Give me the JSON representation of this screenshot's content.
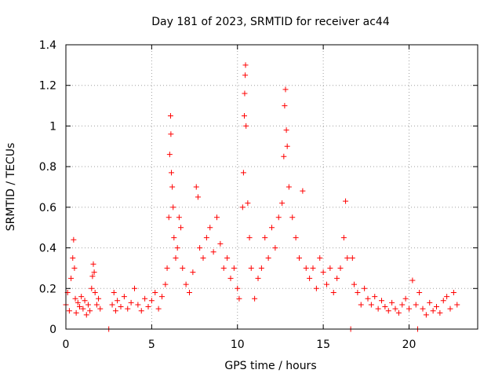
{
  "chart_data": {
    "type": "scatter",
    "title": "Day 181 of 2023, SRMTID for receiver ac44",
    "xlabel": "GPS time / hours",
    "ylabel": "SRMTID / TECUs",
    "xlim": [
      0,
      24
    ],
    "ylim": [
      0,
      1.4
    ],
    "xticks": [
      "0",
      "5",
      "10",
      "15",
      "20"
    ],
    "yticks": [
      "0",
      "0.2",
      "0.4",
      "0.6",
      "0.8",
      "1",
      "1.2",
      "1.4"
    ],
    "grid": true,
    "marker": "+",
    "color": "#ff0000",
    "series": [
      {
        "name": "SRMTID",
        "points": [
          [
            0.0,
            0.12
          ],
          [
            0.1,
            0.18
          ],
          [
            0.2,
            0.09
          ],
          [
            0.3,
            0.25
          ],
          [
            0.4,
            0.35
          ],
          [
            0.45,
            0.44
          ],
          [
            0.5,
            0.3
          ],
          [
            0.55,
            0.15
          ],
          [
            0.6,
            0.08
          ],
          [
            0.7,
            0.13
          ],
          [
            0.8,
            0.11
          ],
          [
            0.9,
            0.16
          ],
          [
            1.0,
            0.1
          ],
          [
            1.1,
            0.14
          ],
          [
            1.2,
            0.07
          ],
          [
            1.3,
            0.12
          ],
          [
            1.4,
            0.09
          ],
          [
            1.5,
            0.2
          ],
          [
            1.55,
            0.26
          ],
          [
            1.6,
            0.32
          ],
          [
            1.65,
            0.28
          ],
          [
            1.7,
            0.18
          ],
          [
            1.8,
            0.12
          ],
          [
            1.9,
            0.15
          ],
          [
            2.0,
            0.1
          ],
          [
            2.5,
            0.0
          ],
          [
            2.7,
            0.12
          ],
          [
            2.8,
            0.18
          ],
          [
            2.9,
            0.09
          ],
          [
            3.0,
            0.14
          ],
          [
            3.2,
            0.11
          ],
          [
            3.4,
            0.16
          ],
          [
            3.6,
            0.1
          ],
          [
            3.8,
            0.13
          ],
          [
            4.0,
            0.2
          ],
          [
            4.2,
            0.12
          ],
          [
            4.4,
            0.09
          ],
          [
            4.6,
            0.15
          ],
          [
            4.8,
            0.11
          ],
          [
            5.0,
            0.14
          ],
          [
            5.2,
            0.18
          ],
          [
            5.4,
            0.1
          ],
          [
            5.6,
            0.16
          ],
          [
            5.8,
            0.22
          ],
          [
            5.9,
            0.3
          ],
          [
            6.0,
            0.55
          ],
          [
            6.05,
            0.86
          ],
          [
            6.1,
            1.05
          ],
          [
            6.12,
            0.96
          ],
          [
            6.15,
            0.77
          ],
          [
            6.2,
            0.7
          ],
          [
            6.25,
            0.6
          ],
          [
            6.3,
            0.45
          ],
          [
            6.4,
            0.35
          ],
          [
            6.5,
            0.4
          ],
          [
            6.6,
            0.55
          ],
          [
            6.7,
            0.5
          ],
          [
            6.8,
            0.3
          ],
          [
            7.0,
            0.22
          ],
          [
            7.2,
            0.18
          ],
          [
            7.4,
            0.28
          ],
          [
            7.6,
            0.7
          ],
          [
            7.7,
            0.65
          ],
          [
            7.8,
            0.4
          ],
          [
            8.0,
            0.35
          ],
          [
            8.2,
            0.45
          ],
          [
            8.4,
            0.5
          ],
          [
            8.6,
            0.38
          ],
          [
            8.8,
            0.55
          ],
          [
            9.0,
            0.42
          ],
          [
            9.2,
            0.3
          ],
          [
            9.4,
            0.35
          ],
          [
            9.6,
            0.25
          ],
          [
            9.8,
            0.3
          ],
          [
            10.0,
            0.2
          ],
          [
            10.1,
            0.15
          ],
          [
            10.3,
            0.6
          ],
          [
            10.35,
            0.77
          ],
          [
            10.4,
            1.05
          ],
          [
            10.42,
            1.16
          ],
          [
            10.45,
            1.25
          ],
          [
            10.47,
            1.3
          ],
          [
            10.5,
            1.0
          ],
          [
            10.6,
            0.62
          ],
          [
            10.7,
            0.45
          ],
          [
            10.8,
            0.3
          ],
          [
            11.0,
            0.15
          ],
          [
            11.2,
            0.25
          ],
          [
            11.4,
            0.3
          ],
          [
            11.6,
            0.45
          ],
          [
            11.8,
            0.35
          ],
          [
            12.0,
            0.5
          ],
          [
            12.2,
            0.4
          ],
          [
            12.4,
            0.55
          ],
          [
            12.6,
            0.62
          ],
          [
            12.7,
            0.85
          ],
          [
            12.75,
            1.1
          ],
          [
            12.8,
            1.18
          ],
          [
            12.85,
            0.98
          ],
          [
            12.9,
            0.9
          ],
          [
            13.0,
            0.7
          ],
          [
            13.2,
            0.55
          ],
          [
            13.4,
            0.45
          ],
          [
            13.6,
            0.35
          ],
          [
            13.8,
            0.68
          ],
          [
            14.0,
            0.3
          ],
          [
            14.2,
            0.25
          ],
          [
            14.4,
            0.3
          ],
          [
            14.6,
            0.2
          ],
          [
            14.8,
            0.35
          ],
          [
            15.0,
            0.28
          ],
          [
            15.2,
            0.22
          ],
          [
            15.4,
            0.3
          ],
          [
            15.6,
            0.18
          ],
          [
            15.8,
            0.25
          ],
          [
            16.0,
            0.3
          ],
          [
            16.2,
            0.45
          ],
          [
            16.3,
            0.63
          ],
          [
            16.4,
            0.35
          ],
          [
            16.6,
            0.0
          ],
          [
            16.7,
            0.35
          ],
          [
            16.8,
            0.22
          ],
          [
            17.0,
            0.18
          ],
          [
            17.2,
            0.12
          ],
          [
            17.4,
            0.2
          ],
          [
            17.6,
            0.15
          ],
          [
            17.8,
            0.12
          ],
          [
            18.0,
            0.16
          ],
          [
            18.2,
            0.1
          ],
          [
            18.4,
            0.14
          ],
          [
            18.6,
            0.11
          ],
          [
            18.8,
            0.09
          ],
          [
            19.0,
            0.13
          ],
          [
            19.2,
            0.1
          ],
          [
            19.4,
            0.08
          ],
          [
            19.6,
            0.12
          ],
          [
            19.8,
            0.15
          ],
          [
            20.0,
            0.1
          ],
          [
            20.2,
            0.24
          ],
          [
            20.4,
            0.12
          ],
          [
            20.5,
            0.0
          ],
          [
            20.6,
            0.18
          ],
          [
            20.8,
            0.1
          ],
          [
            21.0,
            0.07
          ],
          [
            21.2,
            0.13
          ],
          [
            21.4,
            0.09
          ],
          [
            21.6,
            0.11
          ],
          [
            21.8,
            0.08
          ],
          [
            22.0,
            0.14
          ],
          [
            22.2,
            0.16
          ],
          [
            22.4,
            0.1
          ],
          [
            22.6,
            0.18
          ],
          [
            22.8,
            0.12
          ]
        ]
      }
    ]
  }
}
